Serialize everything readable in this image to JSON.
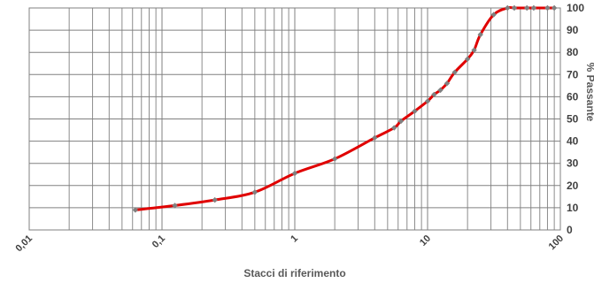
{
  "chart_data": {
    "type": "line",
    "x_scale": "log",
    "xlim": [
      0.01,
      100
    ],
    "ylim": [
      0,
      100
    ],
    "grid": true,
    "xlabel": "Stacci di riferimento",
    "ylabel": "% Passante",
    "x_tick_labels": [
      "0,01",
      "0,1",
      "1",
      "10",
      "100"
    ],
    "y_tick_labels": [
      "0",
      "10",
      "20",
      "30",
      "40",
      "50",
      "60",
      "70",
      "80",
      "90",
      "100"
    ],
    "series": [
      {
        "color": "#e00000",
        "marker_color": "#808080",
        "x": [
          0.063,
          0.125,
          0.25,
          0.5,
          1,
          2,
          4,
          5.6,
          6.3,
          8,
          10,
          11.2,
          12.5,
          14,
          16,
          20,
          22.4,
          25,
          31.5,
          40,
          45,
          56,
          63,
          80,
          90
        ],
        "y": [
          9,
          11,
          13.5,
          17,
          25.5,
          32,
          41.5,
          46,
          49,
          53.5,
          58,
          61,
          63,
          66,
          71,
          77,
          81,
          88,
          97,
          100,
          100,
          100,
          100,
          100,
          100
        ]
      }
    ]
  }
}
